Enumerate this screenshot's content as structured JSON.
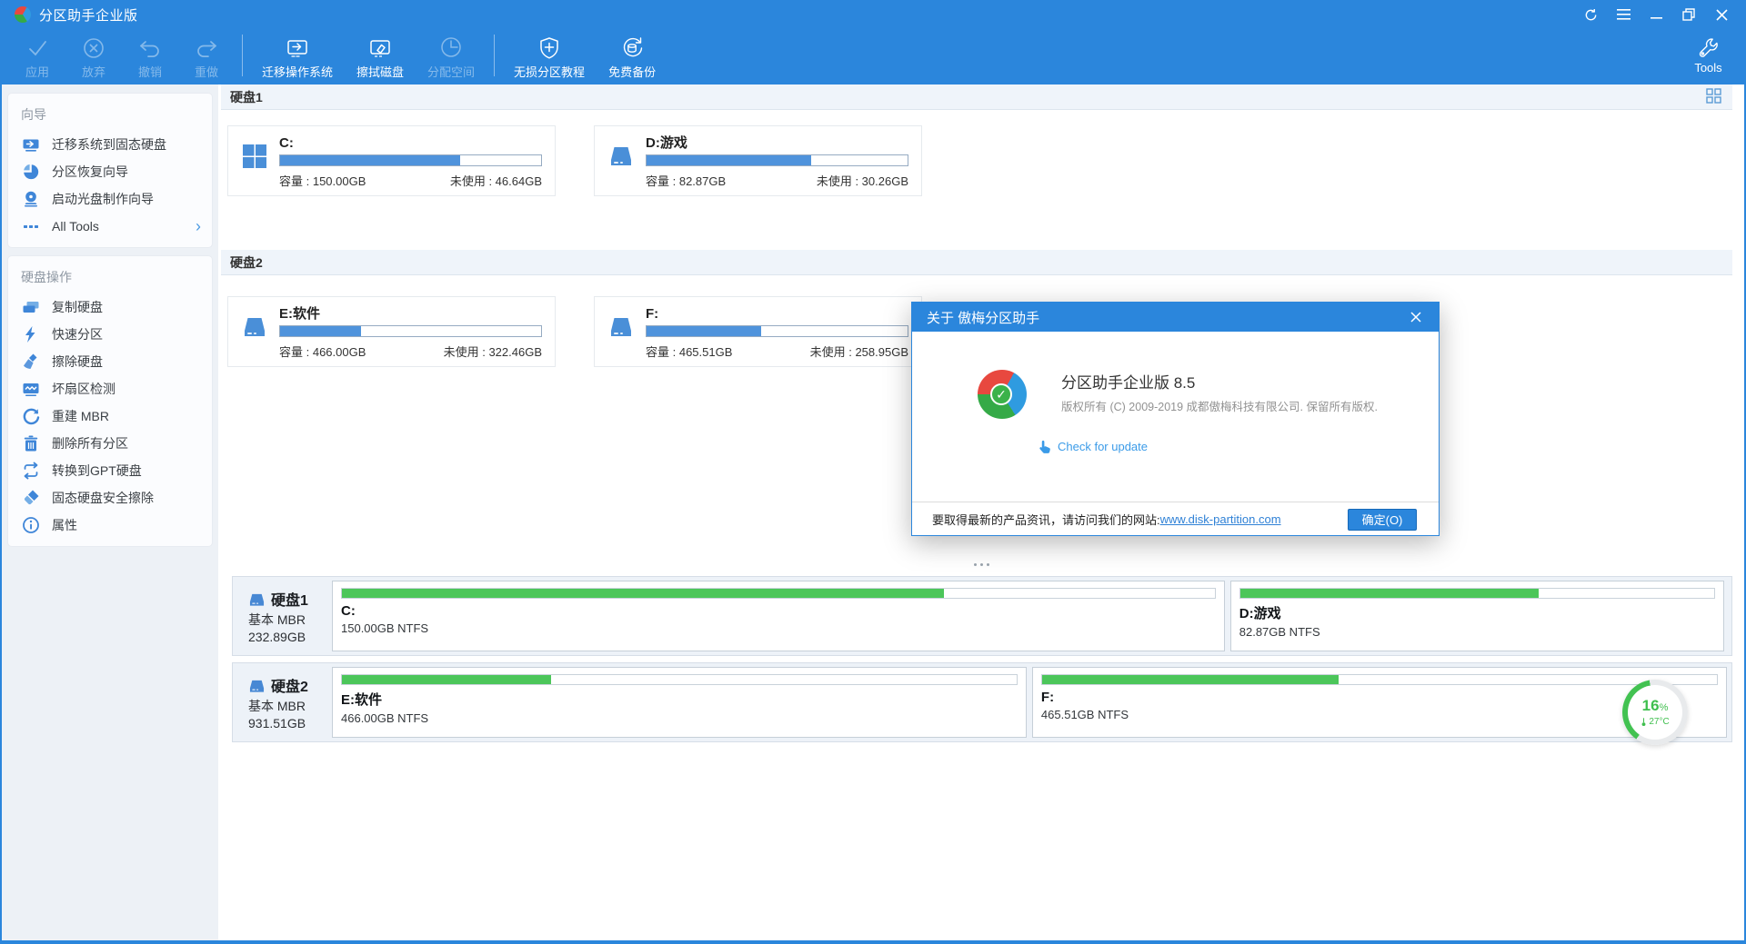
{
  "titlebar": {
    "title": "分区助手企业版"
  },
  "toolbar": {
    "apply": "应用",
    "discard": "放弃",
    "undo": "撤销",
    "redo": "重做",
    "migrate_os": "迁移操作系统",
    "wipe_disk": "擦拭磁盘",
    "allocate": "分配空间",
    "tutorial": "无损分区教程",
    "backup": "免费备份",
    "tools": "Tools"
  },
  "sidebar": {
    "wizards_heading": "向导",
    "wizards": [
      {
        "label": "迁移系统到固态硬盘"
      },
      {
        "label": "分区恢复向导"
      },
      {
        "label": "启动光盘制作向导"
      },
      {
        "label": "All Tools"
      }
    ],
    "diskops_heading": "硬盘操作",
    "diskops": [
      {
        "label": "复制硬盘"
      },
      {
        "label": "快速分区"
      },
      {
        "label": "擦除硬盘"
      },
      {
        "label": "坏扇区检测"
      },
      {
        "label": "重建 MBR"
      },
      {
        "label": "删除所有分区"
      },
      {
        "label": "转换到GPT硬盘"
      },
      {
        "label": "固态硬盘安全擦除"
      },
      {
        "label": "属性"
      }
    ]
  },
  "main": {
    "disk1_heading": "硬盘1",
    "disk2_heading": "硬盘2",
    "cards": [
      {
        "name": "C:",
        "capacity": "容量 : 150.00GB",
        "free": "未使用 : 46.64GB",
        "used_pct": 69
      },
      {
        "name": "D:游戏",
        "capacity": "容量 : 82.87GB",
        "free": "未使用 : 30.26GB",
        "used_pct": 63
      },
      {
        "name": "E:软件",
        "capacity": "容量 : 466.00GB",
        "free": "未使用 : 322.46GB",
        "used_pct": 31
      },
      {
        "name": "F:",
        "capacity": "容量 : 465.51GB",
        "free": "未使用 : 258.95GB",
        "used_pct": 44
      }
    ]
  },
  "dialog": {
    "title": "关于 傲梅分区助手",
    "product": "分区助手企业版 8.5",
    "copyright": "版权所有 (C) 2009-2019 成都傲梅科技有限公司. 保留所有版权.",
    "check_update": "Check for update",
    "footer_text": "要取得最新的产品资讯，请访问我们的网站:",
    "website": "www.disk-partition.com",
    "ok_label": "确定(O)"
  },
  "bottom": {
    "disk1": {
      "name": "硬盘1",
      "type": "基本 MBR",
      "size": "232.89GB"
    },
    "disk2": {
      "name": "硬盘2",
      "type": "基本 MBR",
      "size": "931.51GB"
    },
    "blocks": [
      {
        "name": "C:",
        "info": "150.00GB NTFS",
        "used_pct": 69,
        "width_pct": 64.0
      },
      {
        "name": "D:游戏",
        "info": "82.87GB NTFS",
        "used_pct": 63,
        "width_pct": 35.4
      },
      {
        "name": "E:软件",
        "info": "466.00GB NTFS",
        "used_pct": 31,
        "width_pct": 49.8
      },
      {
        "name": "F:",
        "info": "465.51GB NTFS",
        "used_pct": 44,
        "width_pct": 49.8
      }
    ]
  },
  "widget": {
    "percent": "16",
    "unit": "%",
    "temp": "27°C"
  },
  "colors": {
    "accent_blue": "#2b86dc",
    "bar_blue": "#4f93dc",
    "used_green": "#4cc65a",
    "link_blue": "#2f81d6"
  }
}
